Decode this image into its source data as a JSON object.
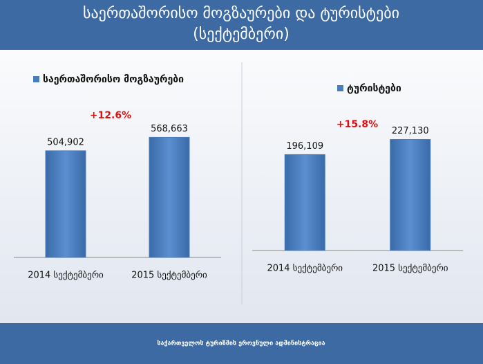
{
  "header": {
    "title_lines": [
      "საერთაშორისო მოგზაურები და ტურისტები",
      "(სექტემბერი)"
    ]
  },
  "footer": {
    "text": "საქართველოს ტურიზმის ეროვნული ადმინისტრაცია"
  },
  "chart_data": [
    {
      "type": "bar",
      "categories": [
        "2014  სექტემბერი",
        "2015 სექტემბერი"
      ],
      "series": [
        {
          "name": "საერთაშორისო მოგზაურები",
          "color": "#4a7ebb",
          "values": [
            504902,
            568663
          ],
          "value_labels": [
            "504,902",
            "568,663"
          ]
        }
      ],
      "annotation": "+12.6%",
      "ylim": [
        0,
        760000
      ],
      "legend": "top"
    },
    {
      "type": "bar",
      "categories": [
        "2014  სექტემბერი",
        "2015 სექტემბერი"
      ],
      "series": [
        {
          "name": "ტურისტები",
          "color": "#4a7ebb",
          "values": [
            196109,
            227130
          ],
          "value_labels": [
            "196,109",
            "227,130"
          ]
        }
      ],
      "annotation": "+15.8%",
      "ylim": [
        0,
        300000
      ],
      "legend": "top"
    }
  ]
}
